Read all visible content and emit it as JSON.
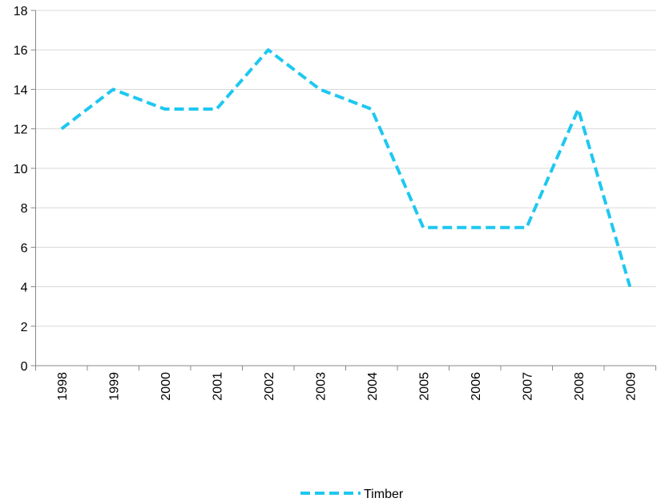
{
  "chart_data": {
    "type": "line",
    "categories": [
      "1998",
      "1999",
      "2000",
      "2001",
      "2002",
      "2003",
      "2004",
      "2005",
      "2006",
      "2007",
      "2008",
      "2009"
    ],
    "series": [
      {
        "name": "Timber",
        "color": "#1ec8f0",
        "values": [
          12,
          14,
          13,
          13,
          16,
          14,
          13,
          7,
          7,
          7,
          13,
          4
        ]
      }
    ],
    "ylim": [
      0,
      18
    ],
    "yticks": [
      0,
      2,
      4,
      6,
      8,
      10,
      12,
      14,
      16,
      18
    ],
    "grid": true,
    "legend": "bottom"
  }
}
